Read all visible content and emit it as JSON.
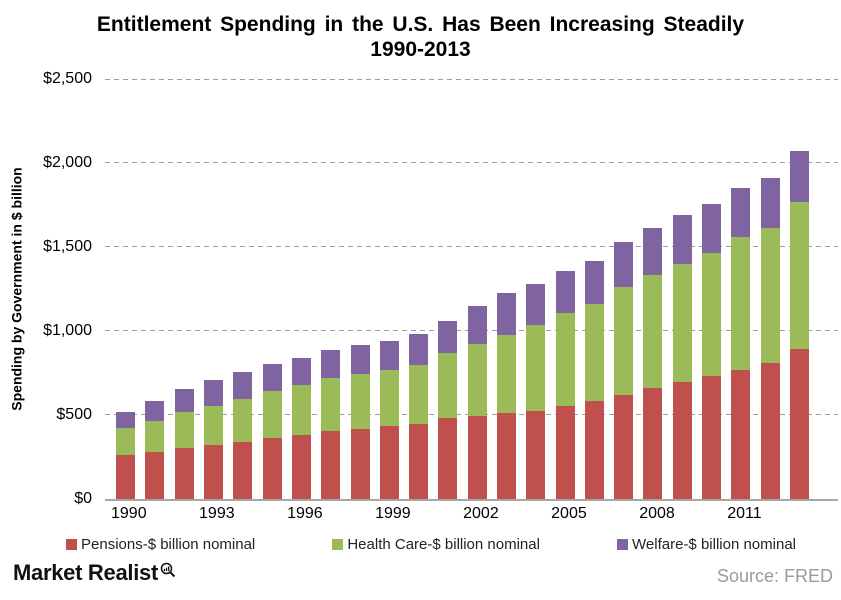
{
  "title": {
    "line1": "Entitlement Spending in the U.S. Has Been Increasing Steadily",
    "line2": "1990-2013"
  },
  "footer": {
    "brand": "Market Realist",
    "brand_icon": "magnifier-with-bar-chart",
    "source": "Source: FRED"
  },
  "chart_data": {
    "type": "bar",
    "stacked": true,
    "title": "Entitlement Spending in the U.S. Has Been Increasing Steadily 1990-2013",
    "xlabel": "",
    "ylabel": "Spending by Government in $ billion",
    "ylim": [
      0,
      2500
    ],
    "ytick_step": 500,
    "ytick_labels": [
      "$0",
      "$500",
      "$1,000",
      "$1,500",
      "$2,000",
      "$2,500"
    ],
    "xtick_labels": [
      "1990",
      "1993",
      "1996",
      "1999",
      "2002",
      "2005",
      "2008",
      "2011"
    ],
    "grid": "horizontal-dashed",
    "legend_position": "bottom",
    "axis_line_color": "#a6a6a6",
    "gridline_color": "#9e9e9e",
    "x": [
      1990,
      1991,
      1992,
      1993,
      1994,
      1995,
      1996,
      1997,
      1998,
      1999,
      2000,
      2001,
      2002,
      2003,
      2004,
      2005,
      2006,
      2007,
      2008,
      2009,
      2010,
      2011,
      2012,
      2013
    ],
    "series": [
      {
        "name": "Pensions-$ billion nominal",
        "key": "pensions",
        "color": "#C0504D",
        "values": [
          263,
          281,
          305,
          323,
          342,
          361,
          382,
          402,
          418,
          432,
          448,
          484,
          496,
          510,
          526,
          555,
          585,
          621,
          658,
          696,
          731,
          768,
          812,
          891
        ]
      },
      {
        "name": "Health Care-$ billion nominal",
        "key": "health-care",
        "color": "#9BBB59",
        "values": [
          160,
          183,
          213,
          233,
          253,
          284,
          297,
          317,
          325,
          337,
          351,
          384,
          429,
          464,
          512,
          550,
          576,
          640,
          674,
          704,
          732,
          790,
          802,
          875
        ]
      },
      {
        "name": "Welfare-$ billion nominal",
        "key": "welfare",
        "color": "#8064A2",
        "values": [
          97,
          119,
          139,
          155,
          162,
          158,
          162,
          167,
          173,
          171,
          185,
          190,
          223,
          254,
          241,
          250,
          258,
          267,
          283,
          290,
          296,
          294,
          295,
          303
        ]
      }
    ]
  }
}
